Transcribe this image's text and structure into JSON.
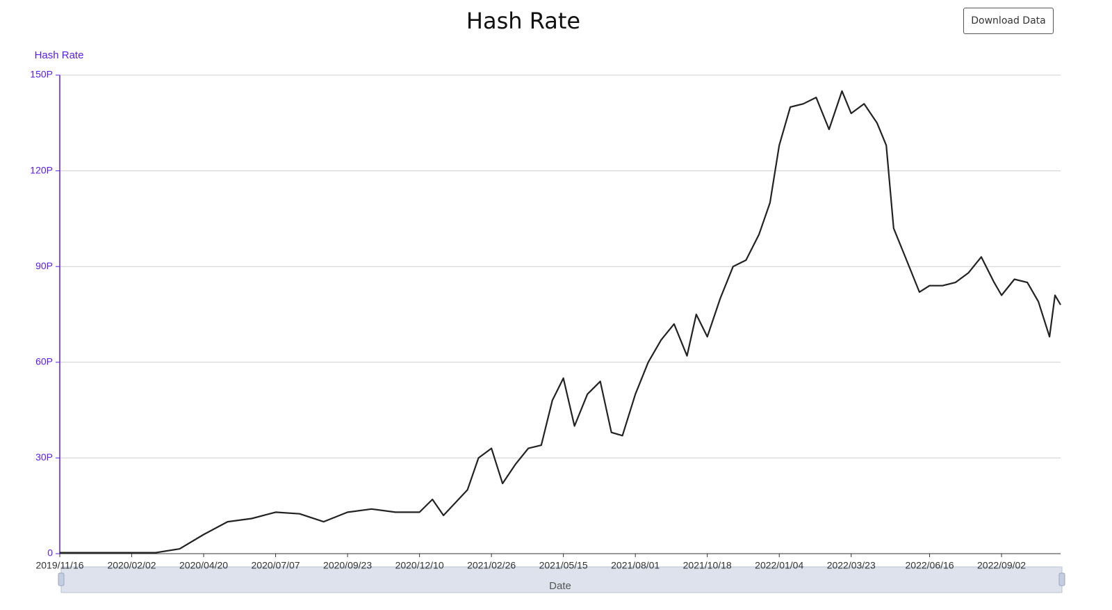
{
  "chart_data": {
    "type": "line",
    "title": "Hash Rate",
    "button": "Download Data",
    "y_label": "Hash Rate",
    "x_label": "Date",
    "color": "#222222",
    "axis_color": "#5a1cf0",
    "grid": true,
    "ylim": [
      0,
      150
    ],
    "yticks": [
      {
        "value": 0,
        "label": "0"
      },
      {
        "value": 30,
        "label": "30P"
      },
      {
        "value": 60,
        "label": "60P"
      },
      {
        "value": 90,
        "label": "90P"
      },
      {
        "value": 120,
        "label": "120P"
      },
      {
        "value": 150,
        "label": "150P"
      }
    ],
    "xlim": [
      "2019/11/16",
      "2022/11/05"
    ],
    "xticks": [
      "2019/11/16",
      "2020/02/02",
      "2020/04/20",
      "2020/07/07",
      "2020/09/23",
      "2020/12/10",
      "2021/02/26",
      "2021/05/15",
      "2021/08/01",
      "2021/10/18",
      "2022/01/04",
      "2022/03/23",
      "2022/06/16",
      "2022/09/02"
    ],
    "x": [
      "2019/11/16",
      "2019/12/12",
      "2020/01/07",
      "2020/02/02",
      "2020/02/28",
      "2020/03/25",
      "2020/04/20",
      "2020/05/16",
      "2020/06/11",
      "2020/07/07",
      "2020/08/02",
      "2020/08/28",
      "2020/09/23",
      "2020/10/19",
      "2020/11/14",
      "2020/12/10",
      "2020/12/24",
      "2021/01/05",
      "2021/01/31",
      "2021/02/12",
      "2021/02/26",
      "2021/03/10",
      "2021/03/24",
      "2021/04/07",
      "2021/04/21",
      "2021/05/03",
      "2021/05/15",
      "2021/05/27",
      "2021/06/10",
      "2021/06/24",
      "2021/07/06",
      "2021/07/18",
      "2021/08/01",
      "2021/08/15",
      "2021/08/29",
      "2021/09/12",
      "2021/09/26",
      "2021/10/06",
      "2021/10/18",
      "2021/11/01",
      "2021/11/15",
      "2021/11/29",
      "2021/12/13",
      "2021/12/25",
      "2022/01/04",
      "2022/01/16",
      "2022/01/30",
      "2022/02/13",
      "2022/02/27",
      "2022/03/13",
      "2022/03/23",
      "2022/04/06",
      "2022/04/20",
      "2022/04/30",
      "2022/05/08",
      "2022/05/22",
      "2022/06/05",
      "2022/06/16",
      "2022/06/30",
      "2022/07/14",
      "2022/07/28",
      "2022/08/11",
      "2022/08/25",
      "2022/09/02",
      "2022/09/16",
      "2022/09/30",
      "2022/10/12",
      "2022/10/24",
      "2022/10/30",
      "2022/11/05"
    ],
    "values": [
      0.3,
      0.3,
      0.3,
      0.3,
      0.3,
      1.5,
      6,
      10,
      11,
      13,
      12.5,
      10,
      13,
      14,
      13,
      13,
      17,
      12,
      20,
      30,
      33,
      22,
      28,
      33,
      34,
      48,
      55,
      40,
      50,
      54,
      38,
      37,
      50,
      60,
      67,
      72,
      62,
      75,
      68,
      80,
      90,
      92,
      100,
      110,
      128,
      140,
      141,
      143,
      133,
      145,
      138,
      141,
      135,
      128,
      102,
      92,
      82,
      84,
      84,
      85,
      88,
      93,
      85,
      81,
      86,
      85,
      79,
      68,
      81,
      78
    ]
  }
}
